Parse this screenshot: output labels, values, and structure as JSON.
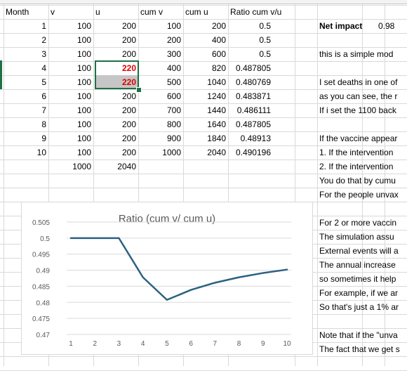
{
  "headers": {
    "month": "Month",
    "v": "v",
    "u": "u",
    "cum_v": "cum v",
    "cum_u": "cum u",
    "ratio": "Ratio cum v/u"
  },
  "rows": [
    {
      "month": "1",
      "v": "100",
      "u": "200",
      "cum_v": "100",
      "cum_u": "200",
      "ratio": "0.5"
    },
    {
      "month": "2",
      "v": "100",
      "u": "200",
      "cum_v": "200",
      "cum_u": "400",
      "ratio": "0.5"
    },
    {
      "month": "3",
      "v": "100",
      "u": "200",
      "cum_v": "300",
      "cum_u": "600",
      "ratio": "0.5"
    },
    {
      "month": "4",
      "v": "100",
      "u": "220",
      "cum_v": "400",
      "cum_u": "820",
      "ratio": "0.487805"
    },
    {
      "month": "5",
      "v": "100",
      "u": "220",
      "cum_v": "500",
      "cum_u": "1040",
      "ratio": "0.480769"
    },
    {
      "month": "6",
      "v": "100",
      "u": "200",
      "cum_v": "600",
      "cum_u": "1240",
      "ratio": "0.483871"
    },
    {
      "month": "7",
      "v": "100",
      "u": "200",
      "cum_v": "700",
      "cum_u": "1440",
      "ratio": "0.486111"
    },
    {
      "month": "8",
      "v": "100",
      "u": "200",
      "cum_v": "800",
      "cum_u": "1640",
      "ratio": "0.487805"
    },
    {
      "month": "9",
      "v": "100",
      "u": "200",
      "cum_v": "900",
      "cum_u": "1840",
      "ratio": "0.48913"
    },
    {
      "month": "10",
      "v": "100",
      "u": "200",
      "cum_v": "1000",
      "cum_u": "2040",
      "ratio": "0.490196"
    }
  ],
  "totals": {
    "v": "1000",
    "u": "2040"
  },
  "net_impact": {
    "label": "Net impact",
    "value": "0.98"
  },
  "notes": [
    {
      "row": 3,
      "text": "this is a simple mod"
    },
    {
      "row": 5,
      "text": "I set deaths in one of"
    },
    {
      "row": 6,
      "text": "as you can see, the r"
    },
    {
      "row": 7,
      "text": "If i set the 1100 back"
    },
    {
      "row": 9,
      "text": "If the vaccine appear"
    },
    {
      "row": 10,
      "text": "1. If the intervention"
    },
    {
      "row": 11,
      "text": "2. If the intervention"
    },
    {
      "row": 12,
      "text": "You do that by cumu"
    },
    {
      "row": 13,
      "text": "For the people unvax"
    },
    {
      "row": 15,
      "text": "For 2 or more vaccin"
    },
    {
      "row": 16,
      "text": "The simulation assu"
    },
    {
      "row": 17,
      "text": "External events will a"
    },
    {
      "row": 18,
      "text": "The annual increase"
    },
    {
      "row": 19,
      "text": "so sometimes it help"
    },
    {
      "row": 20,
      "text": "For example, if we ar"
    },
    {
      "row": 21,
      "text": "So that's just a 1% ar"
    },
    {
      "row": 23,
      "text": "Note that if the \"unva"
    },
    {
      "row": 24,
      "text": "The fact that we get s"
    }
  ],
  "chart_data": {
    "type": "line",
    "title": "Ratio (cum v/ cum u)",
    "x": [
      1,
      2,
      3,
      4,
      5,
      6,
      7,
      8,
      9,
      10
    ],
    "series": [
      {
        "values": [
          0.5,
          0.5,
          0.5,
          0.487805,
          0.480769,
          0.483871,
          0.486111,
          0.487805,
          0.48913,
          0.490196
        ]
      }
    ],
    "yticks": [
      "0.505",
      "0.5",
      "0.495",
      "0.49",
      "0.485",
      "0.48",
      "0.475",
      "0.47"
    ],
    "ytick_values": [
      0.505,
      0.5,
      0.495,
      0.49,
      0.485,
      0.48,
      0.475,
      0.47
    ],
    "ylim": [
      0.47,
      0.505
    ],
    "xlim": [
      1,
      10
    ],
    "grid": true,
    "line_color": "#2b6180"
  }
}
